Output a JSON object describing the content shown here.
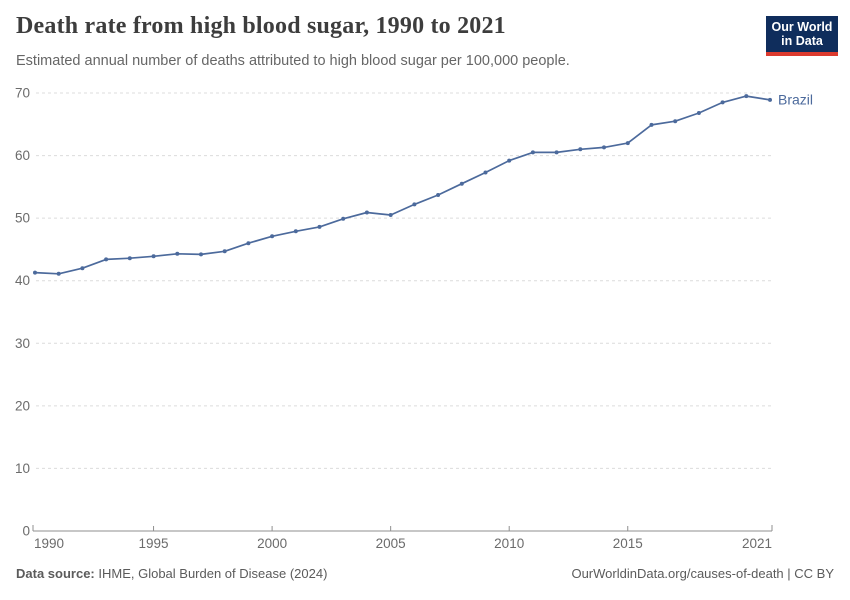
{
  "header": {
    "title": "Death rate from high blood sugar, 1990 to 2021",
    "subtitle": "Estimated annual number of deaths attributed to high blood sugar per 100,000 people.",
    "logo": {
      "line1": "Our World",
      "line2": "in Data",
      "bg_color": "#0F2D5C",
      "stripe_color": "#DC3A2E"
    }
  },
  "chart_data": {
    "type": "line",
    "title": "Death rate from high blood sugar, 1990 to 2021",
    "xlabel": "",
    "ylabel": "",
    "xlim": [
      1990,
      2021
    ],
    "ylim": [
      0,
      70
    ],
    "grid": "horizontal-dashed",
    "legend_position": "end-of-line",
    "xticks": [
      1990,
      1995,
      2000,
      2005,
      2010,
      2015,
      2021
    ],
    "yticks": [
      0,
      10,
      20,
      30,
      40,
      50,
      60,
      70
    ],
    "series": [
      {
        "name": "Brazil",
        "color": "#4C6A9C",
        "x": [
          1990,
          1991,
          1992,
          1993,
          1994,
          1995,
          1996,
          1997,
          1998,
          1999,
          2000,
          2001,
          2002,
          2003,
          2004,
          2005,
          2006,
          2007,
          2008,
          2009,
          2010,
          2011,
          2012,
          2013,
          2014,
          2015,
          2016,
          2017,
          2018,
          2019,
          2020,
          2021
        ],
        "values": [
          41.3,
          41.1,
          42.0,
          43.4,
          43.6,
          43.9,
          44.3,
          44.2,
          44.7,
          46.0,
          47.1,
          47.9,
          48.6,
          49.9,
          50.9,
          50.5,
          52.2,
          53.7,
          55.5,
          57.3,
          59.2,
          60.5,
          60.5,
          61.0,
          61.3,
          62.0,
          64.9,
          65.5,
          66.8,
          68.5,
          69.5,
          68.9
        ]
      }
    ]
  },
  "footer": {
    "source_label": "Data source:",
    "source_text": " IHME, Global Burden of Disease (2024)",
    "right_text": "OurWorldinData.org/causes-of-death | CC BY"
  }
}
